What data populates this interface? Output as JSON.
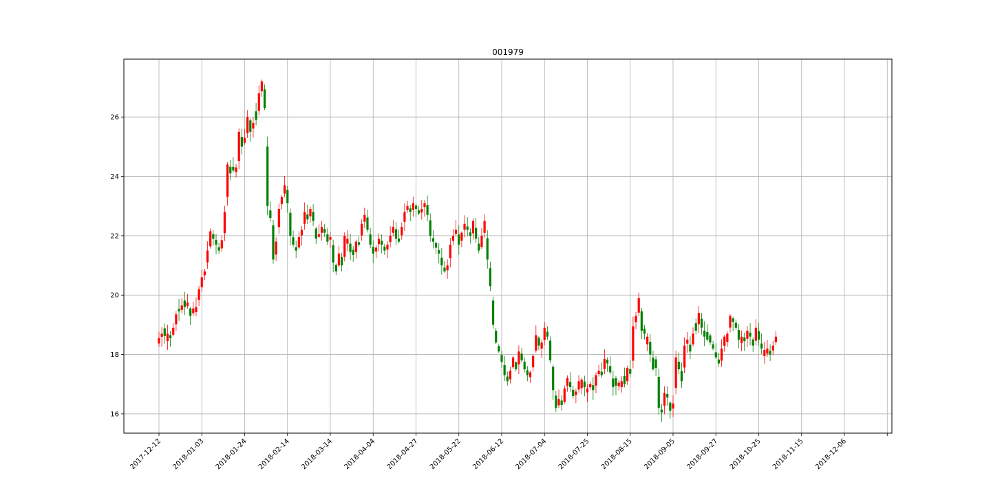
{
  "chart_data": {
    "type": "candlestick",
    "title": "001979",
    "xlabel": "",
    "ylabel": "",
    "ylim": [
      15.35,
      27.95
    ],
    "grid": true,
    "y_ticks": [
      16,
      18,
      20,
      22,
      24,
      26
    ],
    "x_ticks": [
      "2017-12-12",
      "2018-01-03",
      "2018-01-24",
      "2018-02-14",
      "2018-03-14",
      "2018-04-04",
      "2018-04-27",
      "2018-05-22",
      "2018-06-12",
      "2018-07-04",
      "2018-07-25",
      "2018-08-15",
      "2018-09-05",
      "2018-09-27",
      "2018-10-25",
      "2018-11-15",
      "2018-12-06"
    ],
    "x_tick_index": [
      0,
      15,
      30,
      45,
      60,
      75,
      90,
      105,
      120,
      135,
      150,
      165,
      180,
      195,
      210,
      225,
      240
    ],
    "colors": {
      "up": "#ff0000",
      "down": "#008000"
    },
    "close_path": [
      18.55,
      18.7,
      18.62,
      18.7,
      18.55,
      18.9,
      19.35,
      19.45,
      19.65,
      19.6,
      19.75,
      19.3,
      19.55,
      19.6,
      20.2,
      20.6,
      20.8,
      21.5,
      22.15,
      21.9,
      21.7,
      21.5,
      21.85,
      22.8,
      24.4,
      24.1,
      24.2,
      24.3,
      25.5,
      25.0,
      25.3,
      26.0,
      25.5,
      25.8,
      25.9,
      26.8,
      27.2,
      26.3,
      23.0,
      22.6,
      21.2,
      21.8,
      22.9,
      23.3,
      23.7,
      23.1,
      22.0,
      21.7,
      21.5,
      21.95,
      22.2,
      22.8,
      22.55,
      22.9,
      22.5,
      21.9,
      22.05,
      22.3,
      22.1,
      21.8,
      21.95,
      21.1,
      20.8,
      21.4,
      21.0,
      22.0,
      21.9,
      21.45,
      21.35,
      21.8,
      21.7,
      22.4,
      22.7,
      22.2,
      21.7,
      21.4,
      21.6,
      21.9,
      21.7,
      21.5,
      21.7,
      22.0,
      22.3,
      21.9,
      21.8,
      22.3,
      22.8,
      23.0,
      22.8,
      23.1,
      22.9,
      22.75,
      22.9,
      23.1,
      22.7,
      22.0,
      21.8,
      21.6,
      21.4,
      21.0,
      20.8,
      21.0,
      21.7,
      22.0,
      22.2,
      21.7,
      22.1,
      22.4,
      22.2,
      22.0,
      22.5,
      21.9,
      21.5,
      22.0,
      22.5,
      21.2,
      20.3,
      19.0,
      18.4,
      18.1,
      17.75,
      17.3,
      17.1,
      17.45,
      17.9,
      17.5,
      18.1,
      17.8,
      17.5,
      17.3,
      17.4,
      17.95,
      18.65,
      18.3,
      18.4,
      18.9,
      18.6,
      17.8,
      16.8,
      16.2,
      16.5,
      16.3,
      16.85,
      17.2,
      16.9,
      16.6,
      16.75,
      17.1,
      17.15,
      16.9,
      16.85,
      17.0,
      16.8,
      17.3,
      17.45,
      17.3,
      17.85,
      17.7,
      17.4,
      16.9,
      16.95,
      17.05,
      17.1,
      17.0,
      17.55,
      17.35,
      18.95,
      19.3,
      19.9,
      18.8,
      18.7,
      18.6,
      18.0,
      17.5,
      17.55,
      16.2,
      16.05,
      16.7,
      16.55,
      16.1,
      16.35,
      17.9,
      17.5,
      17.1,
      18.3,
      18.5,
      18.1,
      18.7,
      18.8,
      19.4,
      18.9,
      18.6,
      18.5,
      18.4,
      18.2,
      17.9,
      17.7,
      18.2,
      18.6,
      18.7,
      19.3,
      19.1,
      18.9,
      18.5,
      18.6,
      18.45,
      18.8,
      18.6,
      18.3,
      18.9,
      18.5,
      18.2,
      18.15,
      18.2,
      18.0,
      18.3,
      18.6
    ]
  }
}
